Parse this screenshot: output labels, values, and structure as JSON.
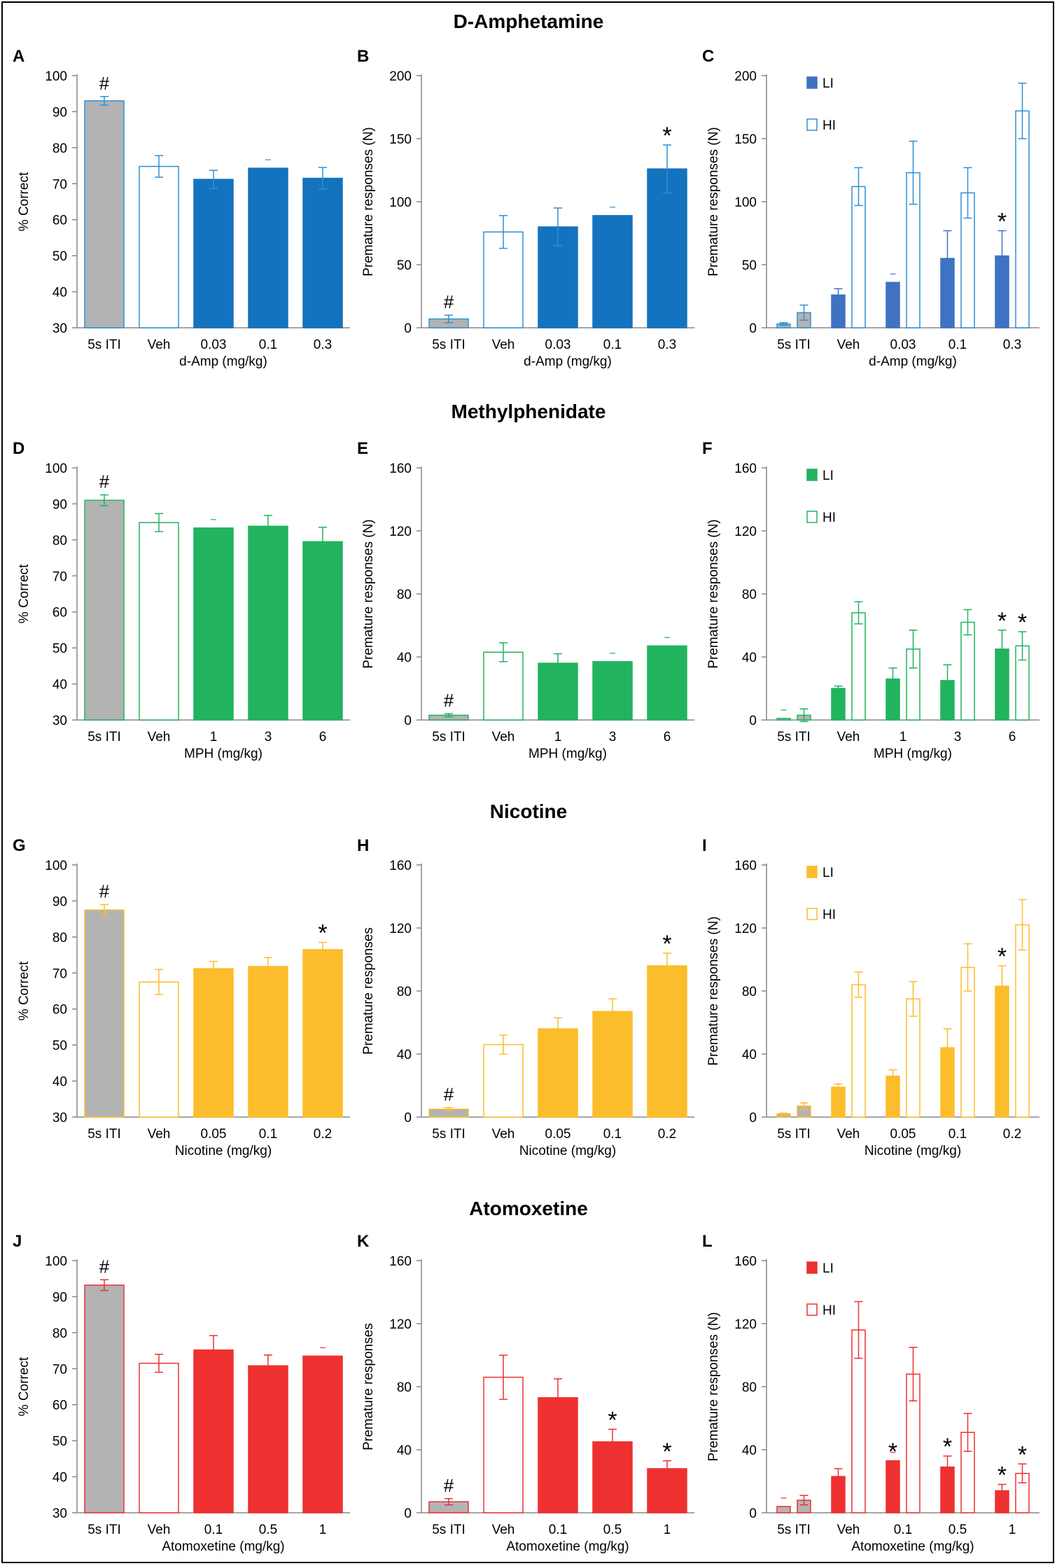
{
  "colors": {
    "gray": "#b3b3b3",
    "amp_bar": "#1473be",
    "amp_bar_li": "#3f72c2",
    "amp_outline": "#2f8fd6",
    "mph": "#22b35e",
    "nic": "#fbbd2b",
    "atx": "#ee3030"
  },
  "sections": [
    {
      "title": "D-Amphetamine"
    },
    {
      "title": "Methylphenidate"
    },
    {
      "title": "Nicotine"
    },
    {
      "title": "Atomoxetine"
    }
  ],
  "chart_data": [
    {
      "id": "A",
      "panel_label": "A",
      "type": "bar",
      "row": 0,
      "col": 0,
      "color_key": "amp_bar",
      "outline_key": "amp_outline",
      "ylabel": "% Correct",
      "xlabel": "d-Amp (mg/kg)",
      "ylim": [
        30,
        100
      ],
      "yticks": [
        30,
        40,
        50,
        60,
        70,
        80,
        90,
        100
      ],
      "categories": [
        "5s ITI",
        "Veh",
        "0.03",
        "0.1",
        "0.3"
      ],
      "series": [
        {
          "name": "",
          "values": [
            93,
            74.8,
            71.2,
            74.3,
            71.5
          ],
          "errors": [
            1.2,
            3,
            2.5,
            0,
            3
          ]
        }
      ],
      "annotations": [
        {
          "cat": 0,
          "text": "#"
        }
      ]
    },
    {
      "id": "B",
      "panel_label": "B",
      "type": "bar",
      "row": 0,
      "col": 1,
      "color_key": "amp_bar",
      "outline_key": "amp_outline",
      "ylabel": "Premature responses (N)",
      "xlabel": "d-Amp (mg/kg)",
      "ylim": [
        0,
        200
      ],
      "yticks": [
        0,
        50,
        100,
        150,
        200
      ],
      "categories": [
        "5s ITI",
        "Veh",
        "0.03",
        "0.1",
        "0.3"
      ],
      "series": [
        {
          "name": "",
          "values": [
            7,
            76,
            80,
            89,
            126
          ],
          "errors": [
            3,
            13,
            15,
            0,
            19
          ]
        }
      ],
      "annotations": [
        {
          "cat": 0,
          "text": "#"
        },
        {
          "cat": 4,
          "text": "*"
        }
      ]
    },
    {
      "id": "C",
      "panel_label": "C",
      "type": "bar",
      "row": 0,
      "col": 2,
      "color_key": "amp_bar_li",
      "outline_key": "amp_outline",
      "ylabel": "Premature responses (N)",
      "xlabel": "d-Amp (mg/kg)",
      "ylim": [
        0,
        200
      ],
      "yticks": [
        0,
        50,
        100,
        150,
        200
      ],
      "categories": [
        "5s ITI",
        "Veh",
        "0.03",
        "0.1",
        "0.3"
      ],
      "legend": [
        "LI",
        "HI"
      ],
      "series": [
        {
          "name": "LI",
          "values": [
            3,
            26,
            36,
            55,
            57
          ],
          "errors": [
            1,
            5,
            0,
            22,
            20
          ]
        },
        {
          "name": "HI",
          "values": [
            12,
            112,
            123,
            107,
            172
          ],
          "errors": [
            6,
            15,
            25,
            20,
            22
          ]
        }
      ],
      "annotations": [
        {
          "cat": 4,
          "text": "*"
        }
      ]
    },
    {
      "id": "D",
      "panel_label": "D",
      "type": "bar",
      "row": 1,
      "col": 0,
      "color_key": "mph",
      "outline_key": "mph",
      "ylabel": "% Correct",
      "xlabel": "MPH (mg/kg)",
      "ylim": [
        30,
        100
      ],
      "yticks": [
        30,
        40,
        50,
        60,
        70,
        80,
        90,
        100
      ],
      "categories": [
        "5s ITI",
        "Veh",
        "1",
        "3",
        "6"
      ],
      "series": [
        {
          "name": "",
          "values": [
            91,
            84.8,
            83.3,
            83.8,
            79.5
          ],
          "errors": [
            1.5,
            2.5,
            0,
            3,
            4
          ]
        }
      ],
      "annotations": [
        {
          "cat": 0,
          "text": "#"
        }
      ]
    },
    {
      "id": "E",
      "panel_label": "E",
      "type": "bar",
      "row": 1,
      "col": 1,
      "color_key": "mph",
      "outline_key": "mph",
      "ylabel": "Premature responses (N)",
      "xlabel": "MPH (mg/kg)",
      "ylim": [
        0,
        160
      ],
      "yticks": [
        0,
        40,
        80,
        120,
        160
      ],
      "categories": [
        "5s ITI",
        "Veh",
        "1",
        "3",
        "6"
      ],
      "series": [
        {
          "name": "",
          "values": [
            3,
            43,
            36,
            37,
            47
          ],
          "errors": [
            1,
            6,
            6,
            0,
            0
          ]
        }
      ],
      "annotations": [
        {
          "cat": 0,
          "text": "#"
        }
      ]
    },
    {
      "id": "F",
      "panel_label": "F",
      "type": "bar",
      "row": 1,
      "col": 2,
      "color_key": "mph",
      "outline_key": "mph",
      "ylabel": "Premature responses (N)",
      "xlabel": "MPH (mg/kg)",
      "ylim": [
        0,
        160
      ],
      "yticks": [
        0,
        40,
        80,
        120,
        160
      ],
      "categories": [
        "5s ITI",
        "Veh",
        "1",
        "3",
        "6"
      ],
      "legend": [
        "LI",
        "HI"
      ],
      "series": [
        {
          "name": "LI",
          "values": [
            1,
            20,
            26,
            25,
            45
          ],
          "errors": [
            0,
            1.5,
            7,
            10,
            12
          ]
        },
        {
          "name": "HI",
          "values": [
            3,
            68,
            45,
            62,
            47
          ],
          "errors": [
            4,
            7,
            12,
            8,
            9
          ]
        }
      ],
      "annotations": [
        {
          "cat": 4,
          "text": "*"
        },
        {
          "cat": 4,
          "text": "*",
          "series": 1
        }
      ]
    },
    {
      "id": "G",
      "panel_label": "G",
      "type": "bar",
      "row": 2,
      "col": 0,
      "color_key": "nic",
      "outline_key": "nic",
      "ylabel": "% Correct",
      "xlabel": "Nicotine (mg/kg)",
      "ylim": [
        30,
        100
      ],
      "yticks": [
        30,
        40,
        50,
        60,
        70,
        80,
        90,
        100
      ],
      "categories": [
        "5s ITI",
        "Veh",
        "0.05",
        "0.1",
        "0.2"
      ],
      "series": [
        {
          "name": "",
          "values": [
            87.5,
            67.5,
            71.2,
            71.8,
            76.5
          ],
          "errors": [
            1.5,
            3.5,
            2,
            2.5,
            2
          ]
        }
      ],
      "annotations": [
        {
          "cat": 0,
          "text": "#"
        },
        {
          "cat": 4,
          "text": "*"
        }
      ]
    },
    {
      "id": "H",
      "panel_label": "H",
      "type": "bar",
      "row": 2,
      "col": 1,
      "color_key": "nic",
      "outline_key": "nic",
      "ylabel": "Premature responses",
      "xlabel": "Nicotine (mg/kg)",
      "ylim": [
        0,
        160
      ],
      "yticks": [
        0,
        40,
        80,
        120,
        160
      ],
      "categories": [
        "5s ITI",
        "Veh",
        "0.05",
        "0.1",
        "0.2"
      ],
      "series": [
        {
          "name": "",
          "values": [
            5,
            46,
            56,
            67,
            96
          ],
          "errors": [
            1,
            6,
            7,
            8,
            8
          ]
        }
      ],
      "annotations": [
        {
          "cat": 0,
          "text": "#"
        },
        {
          "cat": 4,
          "text": "*"
        }
      ]
    },
    {
      "id": "I",
      "panel_label": "I",
      "type": "bar",
      "row": 2,
      "col": 2,
      "color_key": "nic",
      "outline_key": "nic",
      "ylabel": "Premature responses (N)",
      "xlabel": "Nicotine (mg/kg)",
      "ylim": [
        0,
        160
      ],
      "yticks": [
        0,
        40,
        80,
        120,
        160
      ],
      "categories": [
        "5s ITI",
        "Veh",
        "0.05",
        "0.1",
        "0.2"
      ],
      "legend": [
        "LI",
        "HI"
      ],
      "series": [
        {
          "name": "LI",
          "values": [
            2,
            19,
            26,
            44,
            83
          ],
          "errors": [
            0.5,
            2,
            4,
            12,
            13
          ]
        },
        {
          "name": "HI",
          "values": [
            7,
            84,
            75,
            95,
            122
          ],
          "errors": [
            2,
            8,
            11,
            15,
            16
          ]
        }
      ],
      "annotations": [
        {
          "cat": 4,
          "text": "*"
        }
      ]
    },
    {
      "id": "J",
      "panel_label": "J",
      "type": "bar",
      "row": 3,
      "col": 0,
      "color_key": "atx",
      "outline_key": "atx",
      "ylabel": "% Correct",
      "xlabel": "Atomoxetine (mg/kg)",
      "ylim": [
        30,
        100
      ],
      "yticks": [
        30,
        40,
        50,
        60,
        70,
        80,
        90,
        100
      ],
      "categories": [
        "5s ITI",
        "Veh",
        "0.1",
        "0.5",
        "1"
      ],
      "series": [
        {
          "name": "",
          "values": [
            93.2,
            71.5,
            75.2,
            70.8,
            73.5
          ],
          "errors": [
            1.5,
            2.5,
            4,
            3,
            0
          ]
        }
      ],
      "annotations": [
        {
          "cat": 0,
          "text": "#"
        }
      ]
    },
    {
      "id": "K",
      "panel_label": "K",
      "type": "bar",
      "row": 3,
      "col": 1,
      "color_key": "atx",
      "outline_key": "atx",
      "ylabel": "Premature responses",
      "xlabel": "Atomoxetine (mg/kg)",
      "ylim": [
        0,
        160
      ],
      "yticks": [
        0,
        40,
        80,
        120,
        160
      ],
      "categories": [
        "5s ITI",
        "Veh",
        "0.1",
        "0.5",
        "1"
      ],
      "series": [
        {
          "name": "",
          "values": [
            7,
            86,
            73,
            45,
            28
          ],
          "errors": [
            2,
            14,
            12,
            8,
            5
          ]
        }
      ],
      "annotations": [
        {
          "cat": 0,
          "text": "#"
        },
        {
          "cat": 3,
          "text": "*"
        },
        {
          "cat": 4,
          "text": "*"
        }
      ]
    },
    {
      "id": "L",
      "panel_label": "L",
      "type": "bar",
      "row": 3,
      "col": 2,
      "color_key": "atx",
      "outline_key": "atx",
      "ylabel": "Premature responses (N)",
      "xlabel": "Atomoxetine (mg/kg)",
      "ylim": [
        0,
        160
      ],
      "yticks": [
        0,
        40,
        80,
        120,
        160
      ],
      "categories": [
        "5s ITI",
        "Veh",
        "0.1",
        "0.5",
        "1"
      ],
      "legend": [
        "LI",
        "HI"
      ],
      "series": [
        {
          "name": "LI",
          "values": [
            4,
            23,
            33,
            29,
            14
          ],
          "errors": [
            0,
            5,
            0,
            7,
            4
          ]
        },
        {
          "name": "HI",
          "values": [
            8,
            116,
            88,
            51,
            25
          ],
          "errors": [
            3,
            18,
            17,
            12,
            6
          ]
        }
      ],
      "annotations": [
        {
          "cat": 2,
          "text": "*"
        },
        {
          "cat": 3,
          "text": "*"
        },
        {
          "cat": 4,
          "text": "*"
        },
        {
          "cat": 4,
          "text": "*",
          "series": 1
        }
      ]
    }
  ]
}
